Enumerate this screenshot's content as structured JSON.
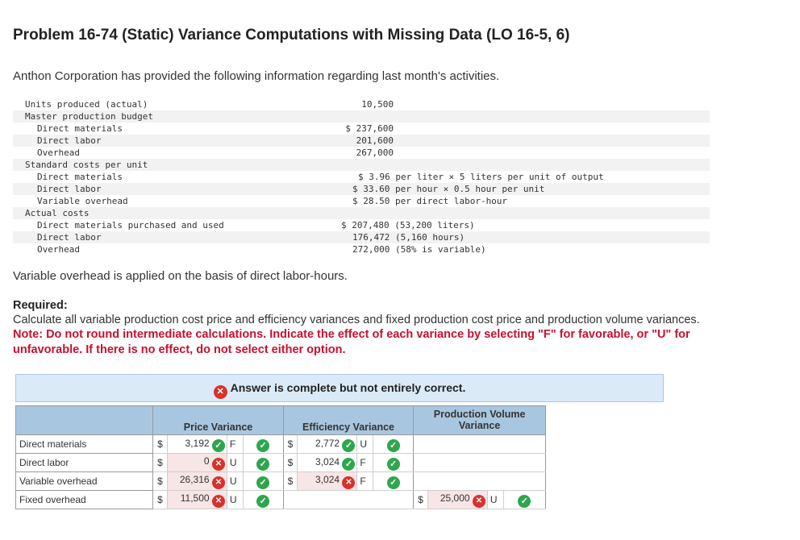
{
  "problem": {
    "title": "Problem 16-74 (Static) Variance Computations with Missing Data (LO 16-5, 6)",
    "intro": "Anthon Corporation has provided the following information regarding last month's activities."
  },
  "info_rows": [
    {
      "label": "Units produced (actual)",
      "value": "10,500",
      "indent": 0
    },
    {
      "label": "Master production budget",
      "value": "",
      "indent": 0
    },
    {
      "label": "Direct materials",
      "value": "$ 237,600",
      "indent": 1
    },
    {
      "label": "Direct labor",
      "value": "201,600",
      "indent": 1
    },
    {
      "label": "Overhead",
      "value": "267,000",
      "indent": 1
    },
    {
      "label": "Standard costs per unit",
      "value": "",
      "indent": 0
    },
    {
      "label": "Direct materials",
      "value": "$ 3.96 per liter × 5 liters per unit of output",
      "indent": 1
    },
    {
      "label": "Direct labor",
      "value": "$ 33.60 per hour × 0.5 hour per unit",
      "indent": 1
    },
    {
      "label": "Variable overhead",
      "value": "$ 28.50 per direct labor-hour",
      "indent": 1
    },
    {
      "label": "Actual costs",
      "value": "",
      "indent": 0
    },
    {
      "label": "Direct materials purchased and used",
      "value": "$ 207,480 (53,200 liters)",
      "indent": 1
    },
    {
      "label": "Direct labor",
      "value": "176,472 (5,160 hours)",
      "indent": 1
    },
    {
      "label": "Overhead",
      "value": "272,000 (58% is variable)",
      "indent": 1
    }
  ],
  "variable_overhead_note": "Variable overhead is applied on the basis of direct labor-hours.",
  "required": {
    "heading": "Required:",
    "text": "Calculate all variable production cost price and efficiency variances and fixed production cost price and production volume variances.",
    "note": "Note: Do not round intermediate calculations. Indicate the effect of each variance by selecting \"F\" for favorable, or \"U\" for unfavorable. If there is no effect, do not select either option."
  },
  "banner": {
    "icon": "x-circle-icon",
    "text": "Answer is complete but not entirely correct."
  },
  "variance_table": {
    "headers": {
      "price": "Price Variance",
      "efficiency": "Efficiency Variance",
      "volume": "Production Volume Variance"
    },
    "rows": [
      {
        "name": "Direct materials",
        "price": {
          "currency": "$",
          "amount": "3,192",
          "status": "correct",
          "effect": "F",
          "row_check": "correct"
        },
        "efficiency": {
          "currency": "$",
          "amount": "2,772",
          "status": "correct",
          "effect": "U",
          "row_check": "correct"
        }
      },
      {
        "name": "Direct labor",
        "price": {
          "currency": "$",
          "amount": "0",
          "status": "incorrect",
          "effect": "U",
          "row_check": "correct"
        },
        "efficiency": {
          "currency": "$",
          "amount": "3,024",
          "status": "correct",
          "effect": "F",
          "row_check": "correct"
        }
      },
      {
        "name": "Variable overhead",
        "price": {
          "currency": "$",
          "amount": "26,316",
          "status": "incorrect",
          "effect": "U",
          "row_check": "correct"
        },
        "efficiency": {
          "currency": "$",
          "amount": "3,024",
          "status": "incorrect",
          "effect": "F",
          "row_check": "correct"
        }
      },
      {
        "name": "Fixed overhead",
        "price": {
          "currency": "$",
          "amount": "11,500",
          "status": "incorrect",
          "effect": "U",
          "row_check": "correct"
        },
        "volume": {
          "currency": "$",
          "amount": "25,000",
          "status": "incorrect",
          "effect": "U",
          "row_check": "correct"
        }
      }
    ]
  },
  "colors": {
    "header_blue": "#a9c6e0",
    "banner_blue": "#daeaf7",
    "correct_green": "#2ea64b",
    "incorrect_red": "#d9322b",
    "note_red": "#c8102e"
  }
}
